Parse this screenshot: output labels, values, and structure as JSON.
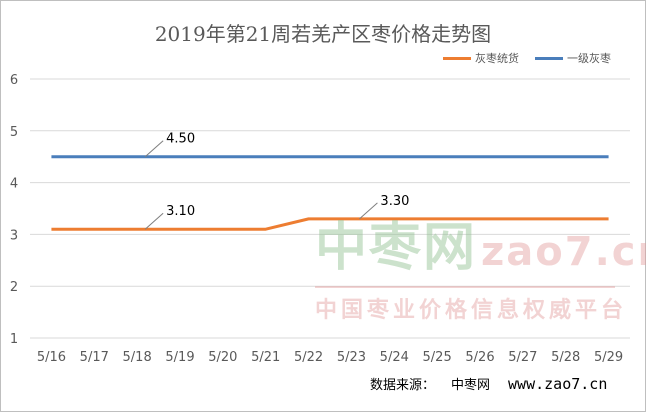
{
  "chart_data": {
    "type": "line",
    "title": "2019年第21周若羌产区枣价格走势图",
    "categories": [
      "5/16",
      "5/17",
      "5/18",
      "5/19",
      "5/20",
      "5/21",
      "5/22",
      "5/23",
      "5/24",
      "5/25",
      "5/26",
      "5/27",
      "5/28",
      "5/29"
    ],
    "series": [
      {
        "name": "灰枣统货",
        "color": "#ed7d31",
        "values": [
          3.1,
          3.1,
          3.1,
          3.1,
          3.1,
          3.1,
          3.3,
          3.3,
          3.3,
          3.3,
          3.3,
          3.3,
          3.3,
          3.3
        ],
        "annotations": [
          {
            "category": "5/18",
            "label": "3.10"
          },
          {
            "category": "5/23",
            "label": "3.30"
          }
        ]
      },
      {
        "name": "一级灰枣",
        "color": "#4a7ebb",
        "values": [
          4.5,
          4.5,
          4.5,
          4.5,
          4.5,
          4.5,
          4.5,
          4.5,
          4.5,
          4.5,
          4.5,
          4.5,
          4.5,
          4.5
        ],
        "annotations": [
          {
            "category": "5/18",
            "label": "4.50"
          }
        ]
      }
    ],
    "ylim": [
      1,
      6
    ],
    "yticks": [
      1,
      2,
      3,
      4,
      5,
      6
    ],
    "grid": true,
    "legend": "top-right"
  },
  "footer": {
    "source_label": "数据来源：",
    "site": "中枣网",
    "url": "www.zao7.cn"
  },
  "watermark": {
    "name": "中枣网",
    "domain": "zao7.cn",
    "slogan": "中国枣业价格信息权威平台"
  }
}
